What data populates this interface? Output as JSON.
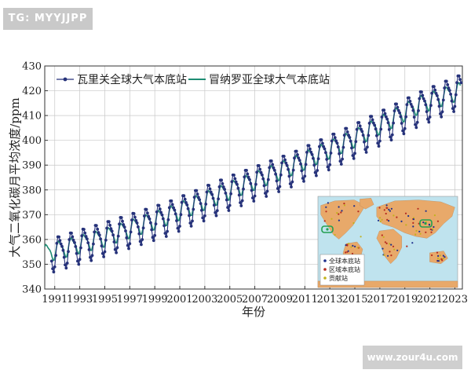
{
  "watermarks": {
    "top": "TG: MYYJJPP",
    "bottom": "www.zour4u.com"
  },
  "chart_data": {
    "type": "line",
    "xlabel": "年份",
    "ylabel": "大气二氧化碳月平均浓度/ppm",
    "xlim": [
      1990.2,
      2023.6
    ],
    "ylim": [
      340,
      430
    ],
    "xticks": [
      1991,
      1993,
      1995,
      1997,
      1999,
      2001,
      2003,
      2005,
      2007,
      2009,
      2011,
      2013,
      2015,
      2017,
      2019,
      2021,
      2023
    ],
    "yticks": [
      340,
      350,
      360,
      370,
      380,
      390,
      400,
      410,
      420,
      430
    ],
    "grid": true,
    "legend_position": "top-left",
    "colors": {
      "waliguan": "#26327a",
      "maunaloa": "#1e8c73",
      "land": "#e8a96a",
      "ocean": "#bfe3ee",
      "station_global": "#1e2f8c",
      "station_regional": "#b52a1e",
      "station_contrib": "#c2b21c"
    },
    "series": [
      {
        "name": "瓦里关全球大气本底站",
        "x_start": 1990.75,
        "x_end": 2023.5,
        "trend": [
          [
            1990.75,
            354.3
          ],
          [
            1995,
            360.8
          ],
          [
            2000,
            369.0
          ],
          [
            2005,
            379.5
          ],
          [
            2010,
            389.0
          ],
          [
            2015,
            400.5
          ],
          [
            2020,
            413.0
          ],
          [
            2023.5,
            420.5
          ]
        ],
        "seasonal_amplitude": 6.2
      },
      {
        "name": "冒纳罗亚全球大气本底站",
        "x_start": 1990.2,
        "x_end": 2023.5,
        "trend": [
          [
            1990.2,
            354.5
          ],
          [
            1995,
            360.9
          ],
          [
            2000,
            369.6
          ],
          [
            2005,
            379.9
          ],
          [
            2010,
            389.8
          ],
          [
            2015,
            401.0
          ],
          [
            2020,
            414.2
          ],
          [
            2023.5,
            420.3
          ]
        ],
        "seasonal_amplitude": 3.3
      }
    ]
  },
  "inset_map": {
    "legend": [
      "全球本底站",
      "区域本底站",
      "贡献站"
    ]
  }
}
